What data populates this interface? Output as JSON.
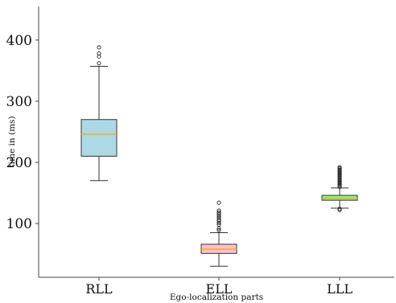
{
  "chart_data": {
    "type": "box",
    "title": "",
    "xlabel": "Ego-localization parts",
    "ylabel": "time in (ms)",
    "ylim": [
      12,
      455
    ],
    "yticks": [
      100,
      200,
      300,
      400
    ],
    "grid": false,
    "categories": [
      "RLL",
      "ELL",
      "LLL"
    ],
    "boxes": [
      {
        "label": "RLL",
        "whisker_low": 170,
        "q1": 210,
        "median": 246,
        "q3": 270,
        "whisker_high": 357,
        "fliers": [
          362,
          373,
          378,
          388
        ],
        "color": "#ADD8E6"
      },
      {
        "label": "ELL",
        "whisker_low": 30,
        "q1": 51,
        "median": 58,
        "q3": 66,
        "whisker_high": 85,
        "fliers": [
          89,
          92,
          98,
          101,
          104,
          106,
          109,
          112,
          115,
          118,
          121,
          134
        ],
        "color": "#FFC0CB"
      },
      {
        "label": "LLL",
        "whisker_low": 125,
        "q1": 138,
        "median": 141,
        "q3": 146,
        "whisker_high": 158,
        "fliers": [
          122,
          124,
          160,
          162,
          164,
          166,
          168,
          170,
          172,
          174,
          176,
          178,
          180,
          182,
          184,
          186,
          188,
          190,
          192
        ],
        "color": "#90EE90"
      }
    ],
    "median_color": "#FFA500"
  }
}
